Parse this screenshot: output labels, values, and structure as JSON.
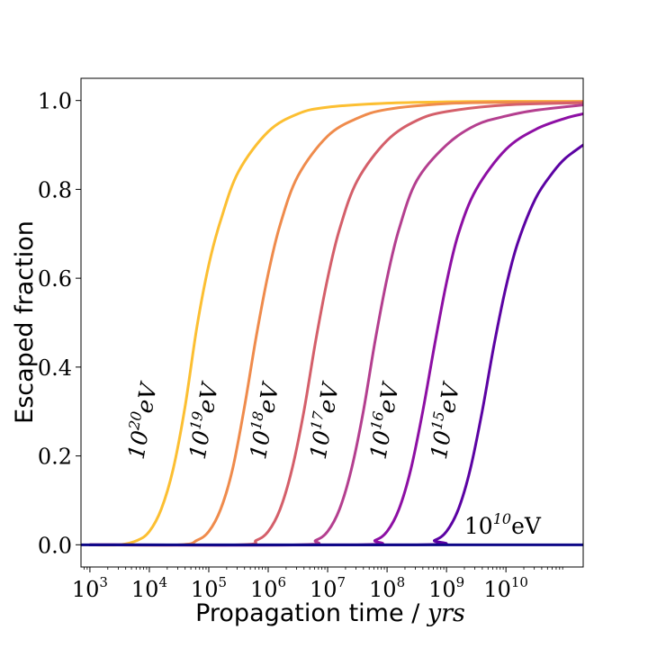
{
  "chart_data": {
    "type": "line",
    "xlabel_main": "Propagation time",
    "xlabel_unit": "yrs",
    "ylabel": "Escaped fraction",
    "x_scale": "log",
    "xlim_log10": [
      2.85,
      11.3
    ],
    "ylim": [
      -0.05,
      1.05
    ],
    "grid": false,
    "x_ticks": [
      {
        "base": "10",
        "exp": "3",
        "log10": 3
      },
      {
        "base": "10",
        "exp": "4",
        "log10": 4
      },
      {
        "base": "10",
        "exp": "5",
        "log10": 5
      },
      {
        "base": "10",
        "exp": "6",
        "log10": 6
      },
      {
        "base": "10",
        "exp": "7",
        "log10": 7
      },
      {
        "base": "10",
        "exp": "8",
        "log10": 8
      },
      {
        "base": "10",
        "exp": "9",
        "log10": 9
      },
      {
        "base": "10",
        "exp": "10",
        "log10": 10
      }
    ],
    "y_ticks": [
      "0.0",
      "0.2",
      "0.4",
      "0.6",
      "0.8",
      "1.0"
    ],
    "series": [
      {
        "name_base": "10",
        "name_exp": "20",
        "name_unit": "eV",
        "color": "#fcbf32",
        "x_log10": [
          3.0,
          3.5,
          3.8,
          4.0,
          4.2,
          4.4,
          4.6,
          4.8,
          5.0,
          5.2,
          5.5,
          6.0,
          6.5,
          7.0,
          8.0,
          9.0,
          10.0,
          11.3
        ],
        "y": [
          0.0,
          0.0,
          0.01,
          0.03,
          0.08,
          0.17,
          0.31,
          0.49,
          0.63,
          0.73,
          0.84,
          0.93,
          0.97,
          0.985,
          0.994,
          0.997,
          0.998,
          0.998
        ]
      },
      {
        "name_base": "10",
        "name_exp": "19",
        "name_unit": "eV",
        "color": "#ef8b4c",
        "x_log10": [
          3.0,
          4.5,
          4.8,
          5.0,
          5.2,
          5.4,
          5.6,
          5.8,
          6.0,
          6.2,
          6.5,
          7.0,
          7.5,
          8.0,
          9.0,
          10.0,
          11.3
        ],
        "y": [
          0.0,
          0.0,
          0.01,
          0.03,
          0.08,
          0.17,
          0.31,
          0.47,
          0.61,
          0.72,
          0.83,
          0.92,
          0.96,
          0.98,
          0.993,
          0.996,
          0.997
        ]
      },
      {
        "name_base": "10",
        "name_exp": "18",
        "name_unit": "eV",
        "color": "#d45f6a",
        "x_log10": [
          3.0,
          5.5,
          5.8,
          6.0,
          6.2,
          6.4,
          6.6,
          6.8,
          7.0,
          7.2,
          7.5,
          8.0,
          8.5,
          9.0,
          10.0,
          11.3
        ],
        "y": [
          0.0,
          0.0,
          0.01,
          0.03,
          0.08,
          0.17,
          0.3,
          0.46,
          0.6,
          0.71,
          0.82,
          0.91,
          0.955,
          0.975,
          0.99,
          0.995
        ]
      },
      {
        "name_base": "10",
        "name_exp": "17",
        "name_unit": "eV",
        "color": "#b43f8f",
        "x_log10": [
          3.0,
          6.5,
          6.8,
          7.0,
          7.2,
          7.4,
          7.6,
          7.8,
          8.0,
          8.2,
          8.5,
          9.0,
          9.5,
          10.0,
          10.5,
          11.3
        ],
        "y": [
          0.0,
          0.0,
          0.01,
          0.03,
          0.08,
          0.17,
          0.3,
          0.46,
          0.6,
          0.71,
          0.82,
          0.9,
          0.945,
          0.965,
          0.978,
          0.99
        ]
      },
      {
        "name_base": "10",
        "name_exp": "16",
        "name_unit": "eV",
        "color": "#8d0fa4",
        "x_log10": [
          3.0,
          7.5,
          7.8,
          8.0,
          8.2,
          8.4,
          8.6,
          8.8,
          9.0,
          9.2,
          9.5,
          10.0,
          10.5,
          11.0,
          11.3
        ],
        "y": [
          0.0,
          0.0,
          0.01,
          0.03,
          0.08,
          0.17,
          0.3,
          0.45,
          0.59,
          0.7,
          0.8,
          0.89,
          0.935,
          0.96,
          0.97
        ]
      },
      {
        "name_base": "10",
        "name_exp": "15",
        "name_unit": "eV",
        "color": "#5b02a3",
        "x_log10": [
          3.0,
          8.5,
          8.8,
          9.0,
          9.2,
          9.4,
          9.6,
          9.8,
          10.0,
          10.2,
          10.5,
          10.8,
          11.0,
          11.3
        ],
        "y": [
          0.0,
          0.0,
          0.01,
          0.03,
          0.08,
          0.17,
          0.3,
          0.45,
          0.58,
          0.68,
          0.78,
          0.84,
          0.87,
          0.9
        ]
      },
      {
        "name_base": "10",
        "name_exp": "10",
        "name_unit": "eV",
        "color": "#0d0887",
        "x_log10": [
          2.85,
          11.3
        ],
        "y": [
          0.0,
          0.0
        ]
      }
    ],
    "annotations": [
      {
        "series_index": 0,
        "x_log10": 3.9,
        "y": 0.19,
        "rotation": -80
      },
      {
        "series_index": 1,
        "x_log10": 4.93,
        "y": 0.19,
        "rotation": -80
      },
      {
        "series_index": 2,
        "x_log10": 5.95,
        "y": 0.19,
        "rotation": -80
      },
      {
        "series_index": 3,
        "x_log10": 6.96,
        "y": 0.19,
        "rotation": -80
      },
      {
        "series_index": 4,
        "x_log10": 7.97,
        "y": 0.19,
        "rotation": -80
      },
      {
        "series_index": 5,
        "x_log10": 8.99,
        "y": 0.19,
        "rotation": -80
      },
      {
        "series_index": 6,
        "x_log10": 9.3,
        "y": 0.025,
        "rotation": 0
      }
    ]
  }
}
